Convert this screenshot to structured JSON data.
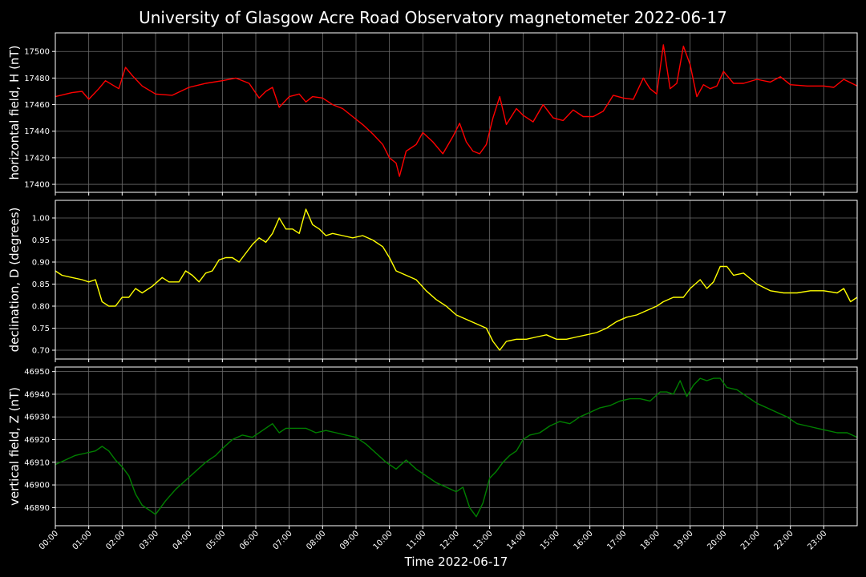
{
  "title": "University of Glasgow Acre Road Observatory magnetometer 2022-06-17",
  "colors": {
    "background": "#000000",
    "text": "#ffffff",
    "grid": "#6e6e6e",
    "spine": "#ffffff"
  },
  "chart_data": [
    {
      "type": "line",
      "ylabel": "horizontal field, H (nT)",
      "ylim": [
        17394,
        17514
      ],
      "yticks": [
        "17400",
        "17420",
        "17440",
        "17460",
        "17480",
        "17500"
      ],
      "grid": true,
      "series": [
        {
          "color": "#ff0000",
          "x_hours": [
            0,
            0.5,
            0.8,
            1.0,
            1.3,
            1.5,
            1.7,
            1.9,
            2.1,
            2.3,
            2.6,
            3.0,
            3.5,
            4.0,
            4.5,
            5.0,
            5.4,
            5.8,
            6.1,
            6.3,
            6.5,
            6.7,
            7.0,
            7.3,
            7.5,
            7.7,
            8.0,
            8.3,
            8.6,
            8.9,
            9.2,
            9.5,
            9.8,
            10.0,
            10.2,
            10.3,
            10.5,
            10.8,
            11.0,
            11.3,
            11.6,
            11.9,
            12.1,
            12.3,
            12.5,
            12.7,
            12.9,
            13.1,
            13.3,
            13.5,
            13.8,
            14.0,
            14.3,
            14.6,
            14.9,
            15.2,
            15.5,
            15.8,
            16.1,
            16.4,
            16.7,
            17.0,
            17.3,
            17.6,
            17.8,
            18.0,
            18.2,
            18.4,
            18.6,
            18.8,
            19.0,
            19.2,
            19.4,
            19.6,
            19.8,
            20.0,
            20.3,
            20.6,
            21.0,
            21.4,
            21.7,
            22.0,
            22.5,
            23.0,
            23.3,
            23.6,
            24.0
          ],
          "values": [
            17466,
            17469,
            17470,
            17464,
            17472,
            17478,
            17475,
            17472,
            17488,
            17482,
            17474,
            17468,
            17467,
            17473,
            17476,
            17478,
            17480,
            17476,
            17465,
            17470,
            17473,
            17458,
            17466,
            17468,
            17462,
            17466,
            17465,
            17460,
            17457,
            17451,
            17445,
            17438,
            17430,
            17420,
            17416,
            17406,
            17425,
            17430,
            17439,
            17432,
            17423,
            17436,
            17446,
            17432,
            17425,
            17423,
            17430,
            17450,
            17466,
            17445,
            17457,
            17452,
            17447,
            17460,
            17450,
            17448,
            17456,
            17451,
            17451,
            17455,
            17467,
            17465,
            17464,
            17480,
            17472,
            17468,
            17505,
            17472,
            17476,
            17504,
            17490,
            17466,
            17475,
            17472,
            17474,
            17485,
            17476,
            17476,
            17479,
            17477,
            17481,
            17475,
            17474,
            17474,
            17473,
            17479,
            17474
          ]
        }
      ]
    },
    {
      "type": "line",
      "ylabel": "declination, D (degrees)",
      "ylim": [
        0.68,
        1.04
      ],
      "yticks": [
        "0.70",
        "0.75",
        "0.80",
        "0.85",
        "0.90",
        "0.95",
        "1.00"
      ],
      "grid": true,
      "series": [
        {
          "color": "#ffff00",
          "x_hours": [
            0,
            0.2,
            0.5,
            0.8,
            1.0,
            1.2,
            1.4,
            1.6,
            1.8,
            2.0,
            2.2,
            2.4,
            2.6,
            2.9,
            3.2,
            3.4,
            3.7,
            3.9,
            4.1,
            4.3,
            4.5,
            4.7,
            4.9,
            5.1,
            5.3,
            5.5,
            5.7,
            5.9,
            6.1,
            6.3,
            6.5,
            6.7,
            6.9,
            7.1,
            7.3,
            7.5,
            7.7,
            7.9,
            8.1,
            8.3,
            8.6,
            8.9,
            9.2,
            9.5,
            9.8,
            10.0,
            10.2,
            10.5,
            10.8,
            11.1,
            11.4,
            11.7,
            12.0,
            12.3,
            12.6,
            12.9,
            13.1,
            13.3,
            13.5,
            13.8,
            14.1,
            14.4,
            14.7,
            15.0,
            15.3,
            15.6,
            15.9,
            16.2,
            16.5,
            16.8,
            17.1,
            17.4,
            17.7,
            18.0,
            18.2,
            18.5,
            18.8,
            19.0,
            19.3,
            19.5,
            19.7,
            19.9,
            20.1,
            20.3,
            20.6,
            21.0,
            21.4,
            21.8,
            22.2,
            22.6,
            23.0,
            23.4,
            23.6,
            23.8,
            24.0
          ],
          "values": [
            0.88,
            0.87,
            0.865,
            0.86,
            0.855,
            0.86,
            0.81,
            0.8,
            0.8,
            0.82,
            0.82,
            0.84,
            0.83,
            0.845,
            0.865,
            0.855,
            0.855,
            0.88,
            0.87,
            0.855,
            0.875,
            0.88,
            0.905,
            0.91,
            0.91,
            0.9,
            0.92,
            0.94,
            0.955,
            0.945,
            0.965,
            1.0,
            0.975,
            0.975,
            0.965,
            1.02,
            0.985,
            0.975,
            0.96,
            0.965,
            0.96,
            0.955,
            0.96,
            0.95,
            0.935,
            0.91,
            0.88,
            0.87,
            0.86,
            0.835,
            0.815,
            0.8,
            0.78,
            0.77,
            0.76,
            0.75,
            0.72,
            0.7,
            0.72,
            0.725,
            0.725,
            0.73,
            0.735,
            0.725,
            0.725,
            0.73,
            0.735,
            0.74,
            0.75,
            0.765,
            0.775,
            0.78,
            0.79,
            0.8,
            0.81,
            0.82,
            0.82,
            0.84,
            0.86,
            0.84,
            0.855,
            0.89,
            0.89,
            0.87,
            0.875,
            0.85,
            0.835,
            0.83,
            0.83,
            0.835,
            0.835,
            0.83,
            0.84,
            0.81,
            0.82
          ]
        }
      ]
    },
    {
      "type": "line",
      "xlabel": "Time 2022-06-17",
      "ylabel": "vertical field, Z (nT)",
      "ylim": [
        46882,
        46952
      ],
      "yticks": [
        "46890",
        "46900",
        "46910",
        "46920",
        "46930",
        "46940",
        "46950"
      ],
      "xlim": [
        0,
        24
      ],
      "xticks": [
        "00:00",
        "01:00",
        "02:00",
        "03:00",
        "04:00",
        "05:00",
        "06:00",
        "07:00",
        "08:00",
        "09:00",
        "10:00",
        "11:00",
        "12:00",
        "13:00",
        "14:00",
        "15:00",
        "16:00",
        "17:00",
        "18:00",
        "19:00",
        "20:00",
        "21:00",
        "22:00",
        "23:00"
      ],
      "grid": true,
      "series": [
        {
          "color": "#008000",
          "x_hours": [
            0,
            0.3,
            0.6,
            0.9,
            1.2,
            1.4,
            1.6,
            1.8,
            2.0,
            2.2,
            2.4,
            2.6,
            2.8,
            3.0,
            3.3,
            3.6,
            3.9,
            4.2,
            4.5,
            4.8,
            5.0,
            5.3,
            5.6,
            5.9,
            6.2,
            6.5,
            6.7,
            6.9,
            7.2,
            7.5,
            7.8,
            8.1,
            8.4,
            8.7,
            9.0,
            9.3,
            9.6,
            9.9,
            10.2,
            10.5,
            10.8,
            11.1,
            11.4,
            11.7,
            12.0,
            12.2,
            12.4,
            12.6,
            12.8,
            13.0,
            13.2,
            13.4,
            13.6,
            13.8,
            14.0,
            14.2,
            14.5,
            14.8,
            15.1,
            15.4,
            15.7,
            16.0,
            16.3,
            16.6,
            16.9,
            17.2,
            17.5,
            17.8,
            18.1,
            18.3,
            18.5,
            18.7,
            18.9,
            19.1,
            19.3,
            19.5,
            19.7,
            19.9,
            20.1,
            20.4,
            20.7,
            21.0,
            21.3,
            21.6,
            21.9,
            22.2,
            22.5,
            22.8,
            23.1,
            23.4,
            23.7,
            24.0
          ],
          "values": [
            46909,
            46911,
            46913,
            46914,
            46915,
            46917,
            46915,
            46911,
            46908,
            46904,
            46896,
            46891,
            46889,
            46887,
            46893,
            46898,
            46902,
            46906,
            46910,
            46913,
            46916,
            46920,
            46922,
            46921,
            46924,
            46927,
            46923,
            46925,
            46925,
            46925,
            46923,
            46924,
            46923,
            46922,
            46921,
            46918,
            46914,
            46910,
            46907,
            46911,
            46907,
            46904,
            46901,
            46899,
            46897,
            46899,
            46890,
            46886,
            46892,
            46903,
            46906,
            46910,
            46913,
            46915,
            46920,
            46922,
            46923,
            46926,
            46928,
            46927,
            46930,
            46932,
            46934,
            46935,
            46937,
            46938,
            46938,
            46937,
            46941,
            46941,
            46940,
            46946,
            46939,
            46944,
            46947,
            46946,
            46947,
            46947,
            46943,
            46942,
            46939,
            46936,
            46934,
            46932,
            46930,
            46927,
            46926,
            46925,
            46924,
            46923,
            46923,
            46921
          ]
        }
      ]
    }
  ]
}
